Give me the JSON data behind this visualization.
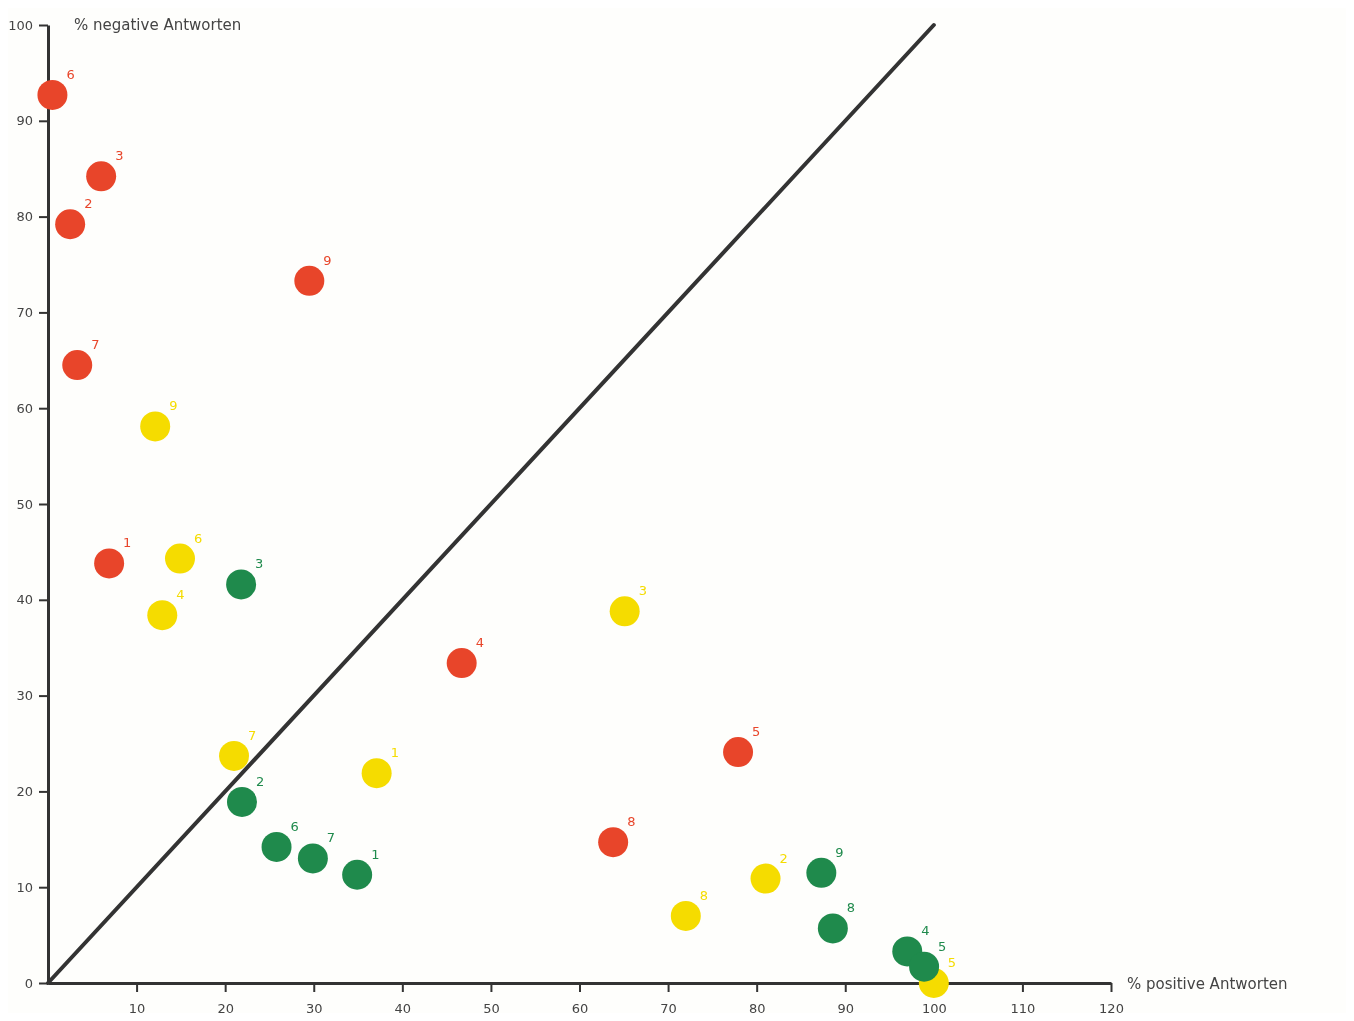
{
  "chart_data": {
    "type": "scatter",
    "xlabel": "% positive Antworten",
    "ylabel": "% negative Antworten",
    "xlim": [
      0,
      120
    ],
    "ylim": [
      0,
      100
    ],
    "xticks": [
      10,
      20,
      30,
      40,
      50,
      60,
      70,
      80,
      90,
      100,
      110,
      120
    ],
    "yticks": [
      0,
      10,
      20,
      30,
      40,
      50,
      60,
      70,
      80,
      90,
      100
    ],
    "grid": false,
    "marker": "circle",
    "series": [
      {
        "type": "line",
        "color": "#333333",
        "x": [
          0,
          100
        ],
        "values": [
          0,
          100
        ],
        "marker": "none",
        "line_style": "solid"
      },
      {
        "color": "#e8452a",
        "x": [
          6.9,
          2.5,
          6.0,
          46.7,
          77.9,
          0.5,
          3.3,
          63.8,
          29.5
        ],
        "values": [
          43.8,
          79.2,
          84.2,
          33.4,
          24.1,
          92.7,
          64.5,
          14.7,
          73.3
        ]
      },
      {
        "color": "#f5dc00",
        "x": [
          37.1,
          81.0,
          65.1,
          12.9,
          100,
          14.9,
          21.0,
          72.0,
          12.1
        ],
        "values": [
          21.9,
          10.9,
          38.8,
          38.4,
          0,
          44.3,
          23.7,
          7.0,
          58.1
        ]
      },
      {
        "color": "#1f8a4c",
        "x": [
          34.9,
          21.9,
          21.8,
          97.0,
          98.9,
          25.8,
          29.9,
          88.6,
          87.3
        ],
        "values": [
          11.3,
          18.9,
          41.6,
          3.3,
          1.7,
          14.2,
          13.0,
          5.7,
          11.5
        ]
      }
    ],
    "annotations": [
      {
        "text": "1",
        "x": 6.9,
        "y": 43.8
      },
      {
        "text": "2",
        "x": 2.5,
        "y": 79.2
      },
      {
        "text": "3",
        "x": 6.0,
        "y": 84.2
      },
      {
        "text": "4",
        "x": 46.7,
        "y": 33.4
      },
      {
        "text": "5",
        "x": 77.9,
        "y": 24.1
      },
      {
        "text": "6",
        "x": 0.5,
        "y": 92.7
      },
      {
        "text": "7",
        "x": 3.3,
        "y": 64.5
      },
      {
        "text": "8",
        "x": 63.8,
        "y": 14.7
      },
      {
        "text": "9",
        "x": 29.5,
        "y": 73.3
      },
      {
        "text": "1",
        "x": 37.1,
        "y": 21.9
      },
      {
        "text": "2",
        "x": 81.0,
        "y": 10.9
      },
      {
        "text": "3",
        "x": 65.1,
        "y": 38.8
      },
      {
        "text": "4",
        "x": 12.9,
        "y": 38.4
      },
      {
        "text": "5",
        "x": 100,
        "y": 0
      },
      {
        "text": "6",
        "x": 14.9,
        "y": 44.3
      },
      {
        "text": "7",
        "x": 21.0,
        "y": 23.7
      },
      {
        "text": "8",
        "x": 72.0,
        "y": 7.0
      },
      {
        "text": "9",
        "x": 12.1,
        "y": 58.1
      },
      {
        "text": "1",
        "x": 34.9,
        "y": 11.3
      },
      {
        "text": "2",
        "x": 21.9,
        "y": 18.9
      },
      {
        "text": "3",
        "x": 21.8,
        "y": 41.6
      },
      {
        "text": "4",
        "x": 97.0,
        "y": 3.3
      },
      {
        "text": "5",
        "x": 98.9,
        "y": 1.7
      },
      {
        "text": "6",
        "x": 25.8,
        "y": 14.2
      },
      {
        "text": "7",
        "x": 29.9,
        "y": 13.0
      },
      {
        "text": "8",
        "x": 88.6,
        "y": 5.7
      },
      {
        "text": "9",
        "x": 87.3,
        "y": 11.5
      }
    ]
  }
}
